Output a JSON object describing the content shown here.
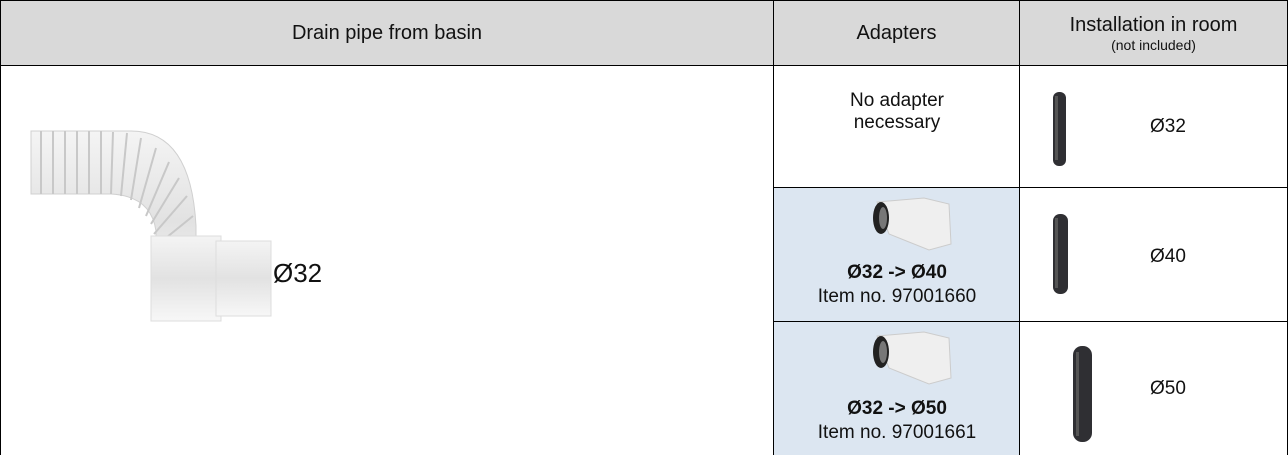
{
  "table": {
    "header": {
      "pipe": "Drain pipe from basin",
      "adapters": "Adapters",
      "installation": "Installation in room",
      "installation_note": "(not included)"
    },
    "pipe_label": "Ø32",
    "rows": [
      {
        "adapter": "No adapter necessary",
        "installation": "Ø32"
      },
      {
        "adapter": "Ø32 -> Ø40",
        "item": "Item no. 97001660",
        "installation": "Ø40"
      },
      {
        "adapter": "Ø32 -> Ø50",
        "item": "Item no. 97001661",
        "installation": "Ø50"
      }
    ]
  }
}
